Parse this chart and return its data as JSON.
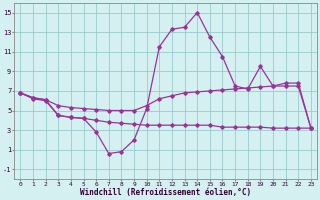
{
  "xlabel": "Windchill (Refroidissement éolien,°C)",
  "hours": [
    0,
    1,
    2,
    3,
    4,
    5,
    6,
    7,
    8,
    9,
    10,
    11,
    12,
    13,
    14,
    15,
    16,
    17,
    18,
    19,
    20,
    21,
    22,
    23
  ],
  "curve_top": [
    6.8,
    6.2,
    6.0,
    4.5,
    4.3,
    4.2,
    2.8,
    0.6,
    0.8,
    2.0,
    5.2,
    11.5,
    13.3,
    13.5,
    15.0,
    12.5,
    10.5,
    7.5,
    7.2,
    9.5,
    7.5,
    7.8,
    7.8,
    3.2
  ],
  "curve_mid": [
    6.8,
    6.3,
    6.1,
    5.5,
    5.3,
    5.2,
    5.1,
    5.0,
    5.0,
    5.0,
    5.5,
    6.2,
    6.5,
    6.8,
    6.9,
    7.0,
    7.1,
    7.2,
    7.3,
    7.4,
    7.5,
    7.5,
    7.5,
    3.2
  ],
  "curve_bot": [
    6.8,
    6.3,
    6.1,
    4.5,
    4.3,
    4.2,
    4.0,
    3.8,
    3.7,
    3.6,
    3.5,
    3.5,
    3.5,
    3.5,
    3.5,
    3.5,
    3.3,
    3.3,
    3.3,
    3.3,
    3.2,
    3.2,
    3.2,
    3.2
  ],
  "ylim": [
    -2,
    16
  ],
  "yticks": [
    -1,
    1,
    3,
    5,
    7,
    9,
    11,
    13,
    15
  ],
  "color": "#993399",
  "bg_color": "#d5f0f0",
  "grid_color": "#99cccc"
}
